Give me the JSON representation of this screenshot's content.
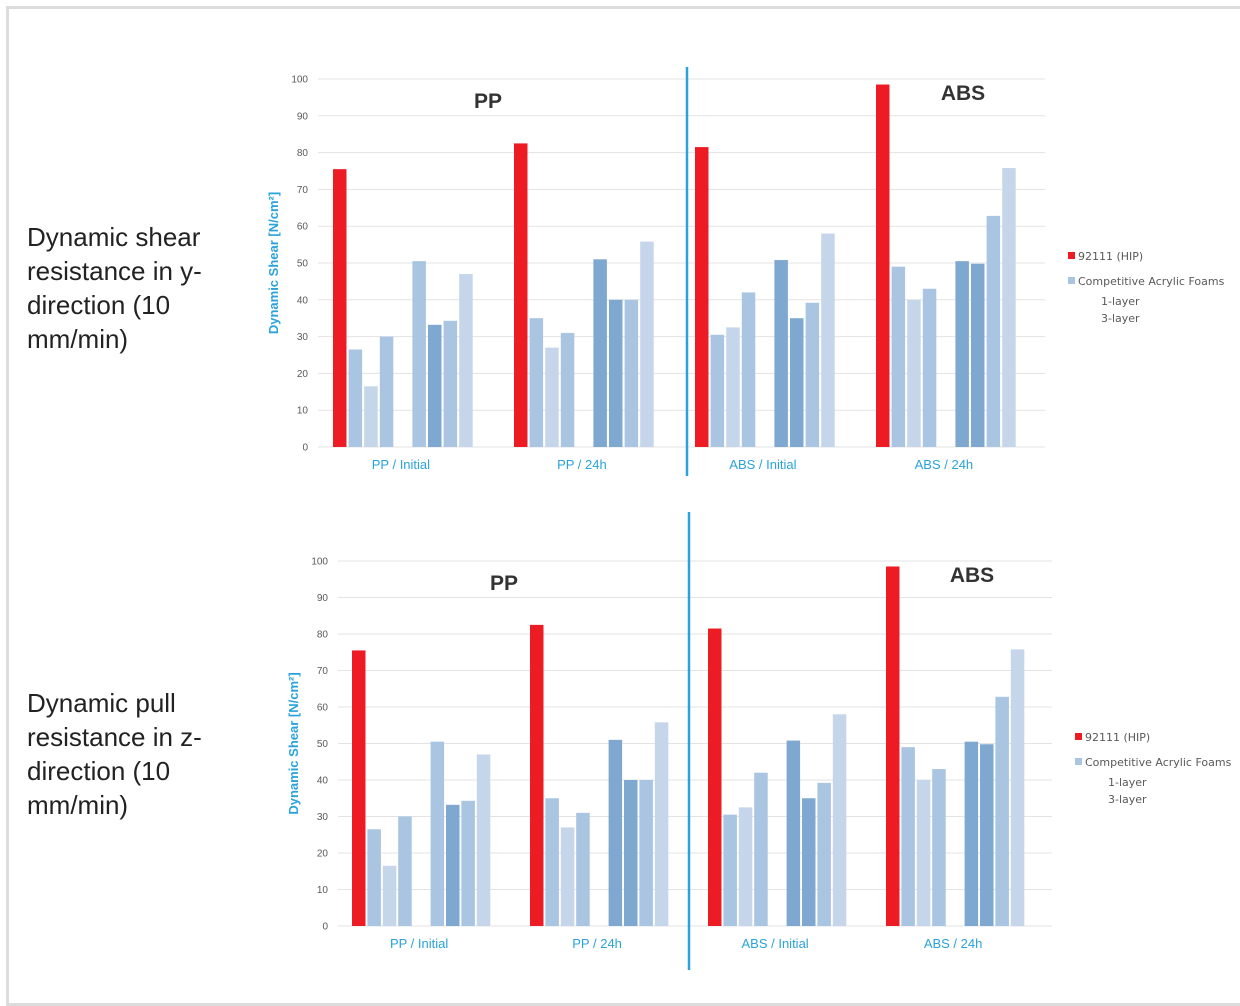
{
  "row_labels": {
    "top": "Dynamic shear resistance in y-direction (10 mm/min)",
    "bottom": "Dynamic pull resistance in z-direction (10 mm/min)"
  },
  "colors": {
    "hip": "#ed1c24",
    "divider": "#29a3da",
    "axis_text": "#29a3da",
    "bars_light": "#c5d6ea",
    "bars_mid": "#a9c5e1",
    "bars_dark": "#7ea8d0"
  },
  "chart_data": [
    {
      "type": "bar",
      "ylabel": "Dynamic Shear [N/cm²]",
      "ylim": [
        0,
        100
      ],
      "yticks": [
        0,
        10,
        20,
        30,
        40,
        50,
        60,
        70,
        80,
        90,
        100
      ],
      "grid": true,
      "section_labels": [
        "PP",
        "ABS"
      ],
      "categories": [
        "PP / Initial",
        "PP / 24h",
        "ABS / Initial",
        "ABS / 24h"
      ],
      "series": [
        {
          "name": "92111 (HIP)",
          "values": [
            75.5,
            82.5,
            81.5,
            98.5
          ]
        },
        {
          "values": [
            26.5,
            35,
            30.5,
            49
          ]
        },
        {
          "values": [
            16.5,
            27,
            32.5,
            40
          ]
        },
        {
          "values": [
            30,
            31,
            42,
            43
          ]
        },
        {
          "values": [
            50.5,
            51,
            50.8,
            50.5
          ]
        },
        {
          "values": [
            33.2,
            40,
            35,
            49.8
          ]
        },
        {
          "values": [
            34.3,
            40,
            39.2,
            62.8
          ]
        },
        {
          "values": [
            47,
            55.8,
            58,
            75.8
          ]
        }
      ],
      "legend": {
        "placement": "right",
        "items": [
          "92111 (HIP)",
          "Competitive Acrylic Foams",
          "1-layer",
          "3-layer"
        ]
      }
    },
    {
      "type": "bar",
      "ylabel": "Dynamic Shear [N/cm²]",
      "ylim": [
        0,
        100
      ],
      "yticks": [
        0,
        10,
        20,
        30,
        40,
        50,
        60,
        70,
        80,
        90,
        100
      ],
      "grid": true,
      "section_labels": [
        "PP",
        "ABS"
      ],
      "categories": [
        "PP / Initial",
        "PP / 24h",
        "ABS / Initial",
        "ABS / 24h"
      ],
      "series": [
        {
          "name": "92111 (HIP)",
          "values": [
            75.5,
            82.5,
            81.5,
            98.5
          ]
        },
        {
          "values": [
            26.5,
            35,
            30.5,
            49
          ]
        },
        {
          "values": [
            16.5,
            27,
            32.5,
            40
          ]
        },
        {
          "values": [
            30,
            31,
            42,
            43
          ]
        },
        {
          "values": [
            50.5,
            51,
            50.8,
            50.5
          ]
        },
        {
          "values": [
            33.2,
            40,
            35,
            49.8
          ]
        },
        {
          "values": [
            34.3,
            40,
            39.2,
            62.8
          ]
        },
        {
          "values": [
            47,
            55.8,
            58,
            75.8
          ]
        }
      ],
      "legend": {
        "placement": "right",
        "items": [
          "92111 (HIP)",
          "Competitive Acrylic Foams",
          "1-layer",
          "3-layer"
        ]
      }
    }
  ]
}
